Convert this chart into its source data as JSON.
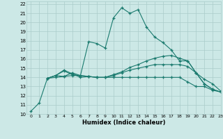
{
  "xlabel": "Humidex (Indice chaleur)",
  "xlim": [
    -0.5,
    23
  ],
  "ylim": [
    10,
    22.3
  ],
  "yticks": [
    10,
    11,
    12,
    13,
    14,
    15,
    16,
    17,
    18,
    19,
    20,
    21,
    22
  ],
  "xticks": [
    0,
    1,
    2,
    3,
    4,
    5,
    6,
    7,
    8,
    9,
    10,
    11,
    12,
    13,
    14,
    15,
    16,
    17,
    18,
    19,
    20,
    21,
    22,
    23
  ],
  "bg_color": "#cce8e6",
  "grid_color": "#aaccca",
  "line_color": "#1a7a6e",
  "lines": [
    {
      "x": [
        0,
        1,
        2,
        3,
        4,
        5,
        6,
        7,
        8,
        9,
        10,
        11,
        12,
        13,
        14,
        15,
        16,
        17,
        18,
        19,
        20,
        21,
        22,
        23
      ],
      "y": [
        10.3,
        11.2,
        13.9,
        14.2,
        14.1,
        14.5,
        14.2,
        17.9,
        17.7,
        17.2,
        20.5,
        21.6,
        21.0,
        21.4,
        19.5,
        18.4,
        17.8,
        17.0,
        15.8,
        15.8,
        14.5,
        13.3,
        12.7,
        12.4
      ]
    },
    {
      "x": [
        2,
        3,
        4,
        5,
        6,
        7,
        8,
        9,
        10,
        11,
        12,
        13,
        14,
        15,
        16,
        17,
        18,
        19,
        20,
        21,
        22,
        23
      ],
      "y": [
        13.9,
        14.2,
        14.7,
        14.3,
        14.2,
        14.1,
        14.0,
        14.0,
        14.0,
        14.0,
        14.0,
        14.0,
        14.0,
        14.0,
        14.0,
        14.0,
        14.0,
        13.5,
        13.0,
        13.0,
        12.6,
        12.4
      ]
    },
    {
      "x": [
        2,
        3,
        4,
        5,
        6,
        7,
        8,
        9,
        10,
        11,
        12,
        13,
        14,
        15,
        16,
        17,
        18,
        19,
        20,
        21,
        22,
        23
      ],
      "y": [
        13.9,
        14.0,
        14.1,
        14.2,
        14.2,
        14.1,
        14.0,
        14.0,
        14.3,
        14.6,
        15.1,
        15.4,
        15.8,
        16.1,
        16.3,
        16.4,
        16.1,
        15.8,
        14.5,
        13.3,
        12.7,
        12.4
      ]
    },
    {
      "x": [
        2,
        3,
        4,
        5,
        6,
        7,
        8,
        9,
        10,
        11,
        12,
        13,
        14,
        15,
        16,
        17,
        18,
        19,
        20,
        21,
        22,
        23
      ],
      "y": [
        13.9,
        14.2,
        14.8,
        14.4,
        14.0,
        14.1,
        14.0,
        14.0,
        14.2,
        14.5,
        14.8,
        15.0,
        15.2,
        15.4,
        15.4,
        15.4,
        15.4,
        15.2,
        14.5,
        13.8,
        13.3,
        12.5
      ]
    }
  ]
}
